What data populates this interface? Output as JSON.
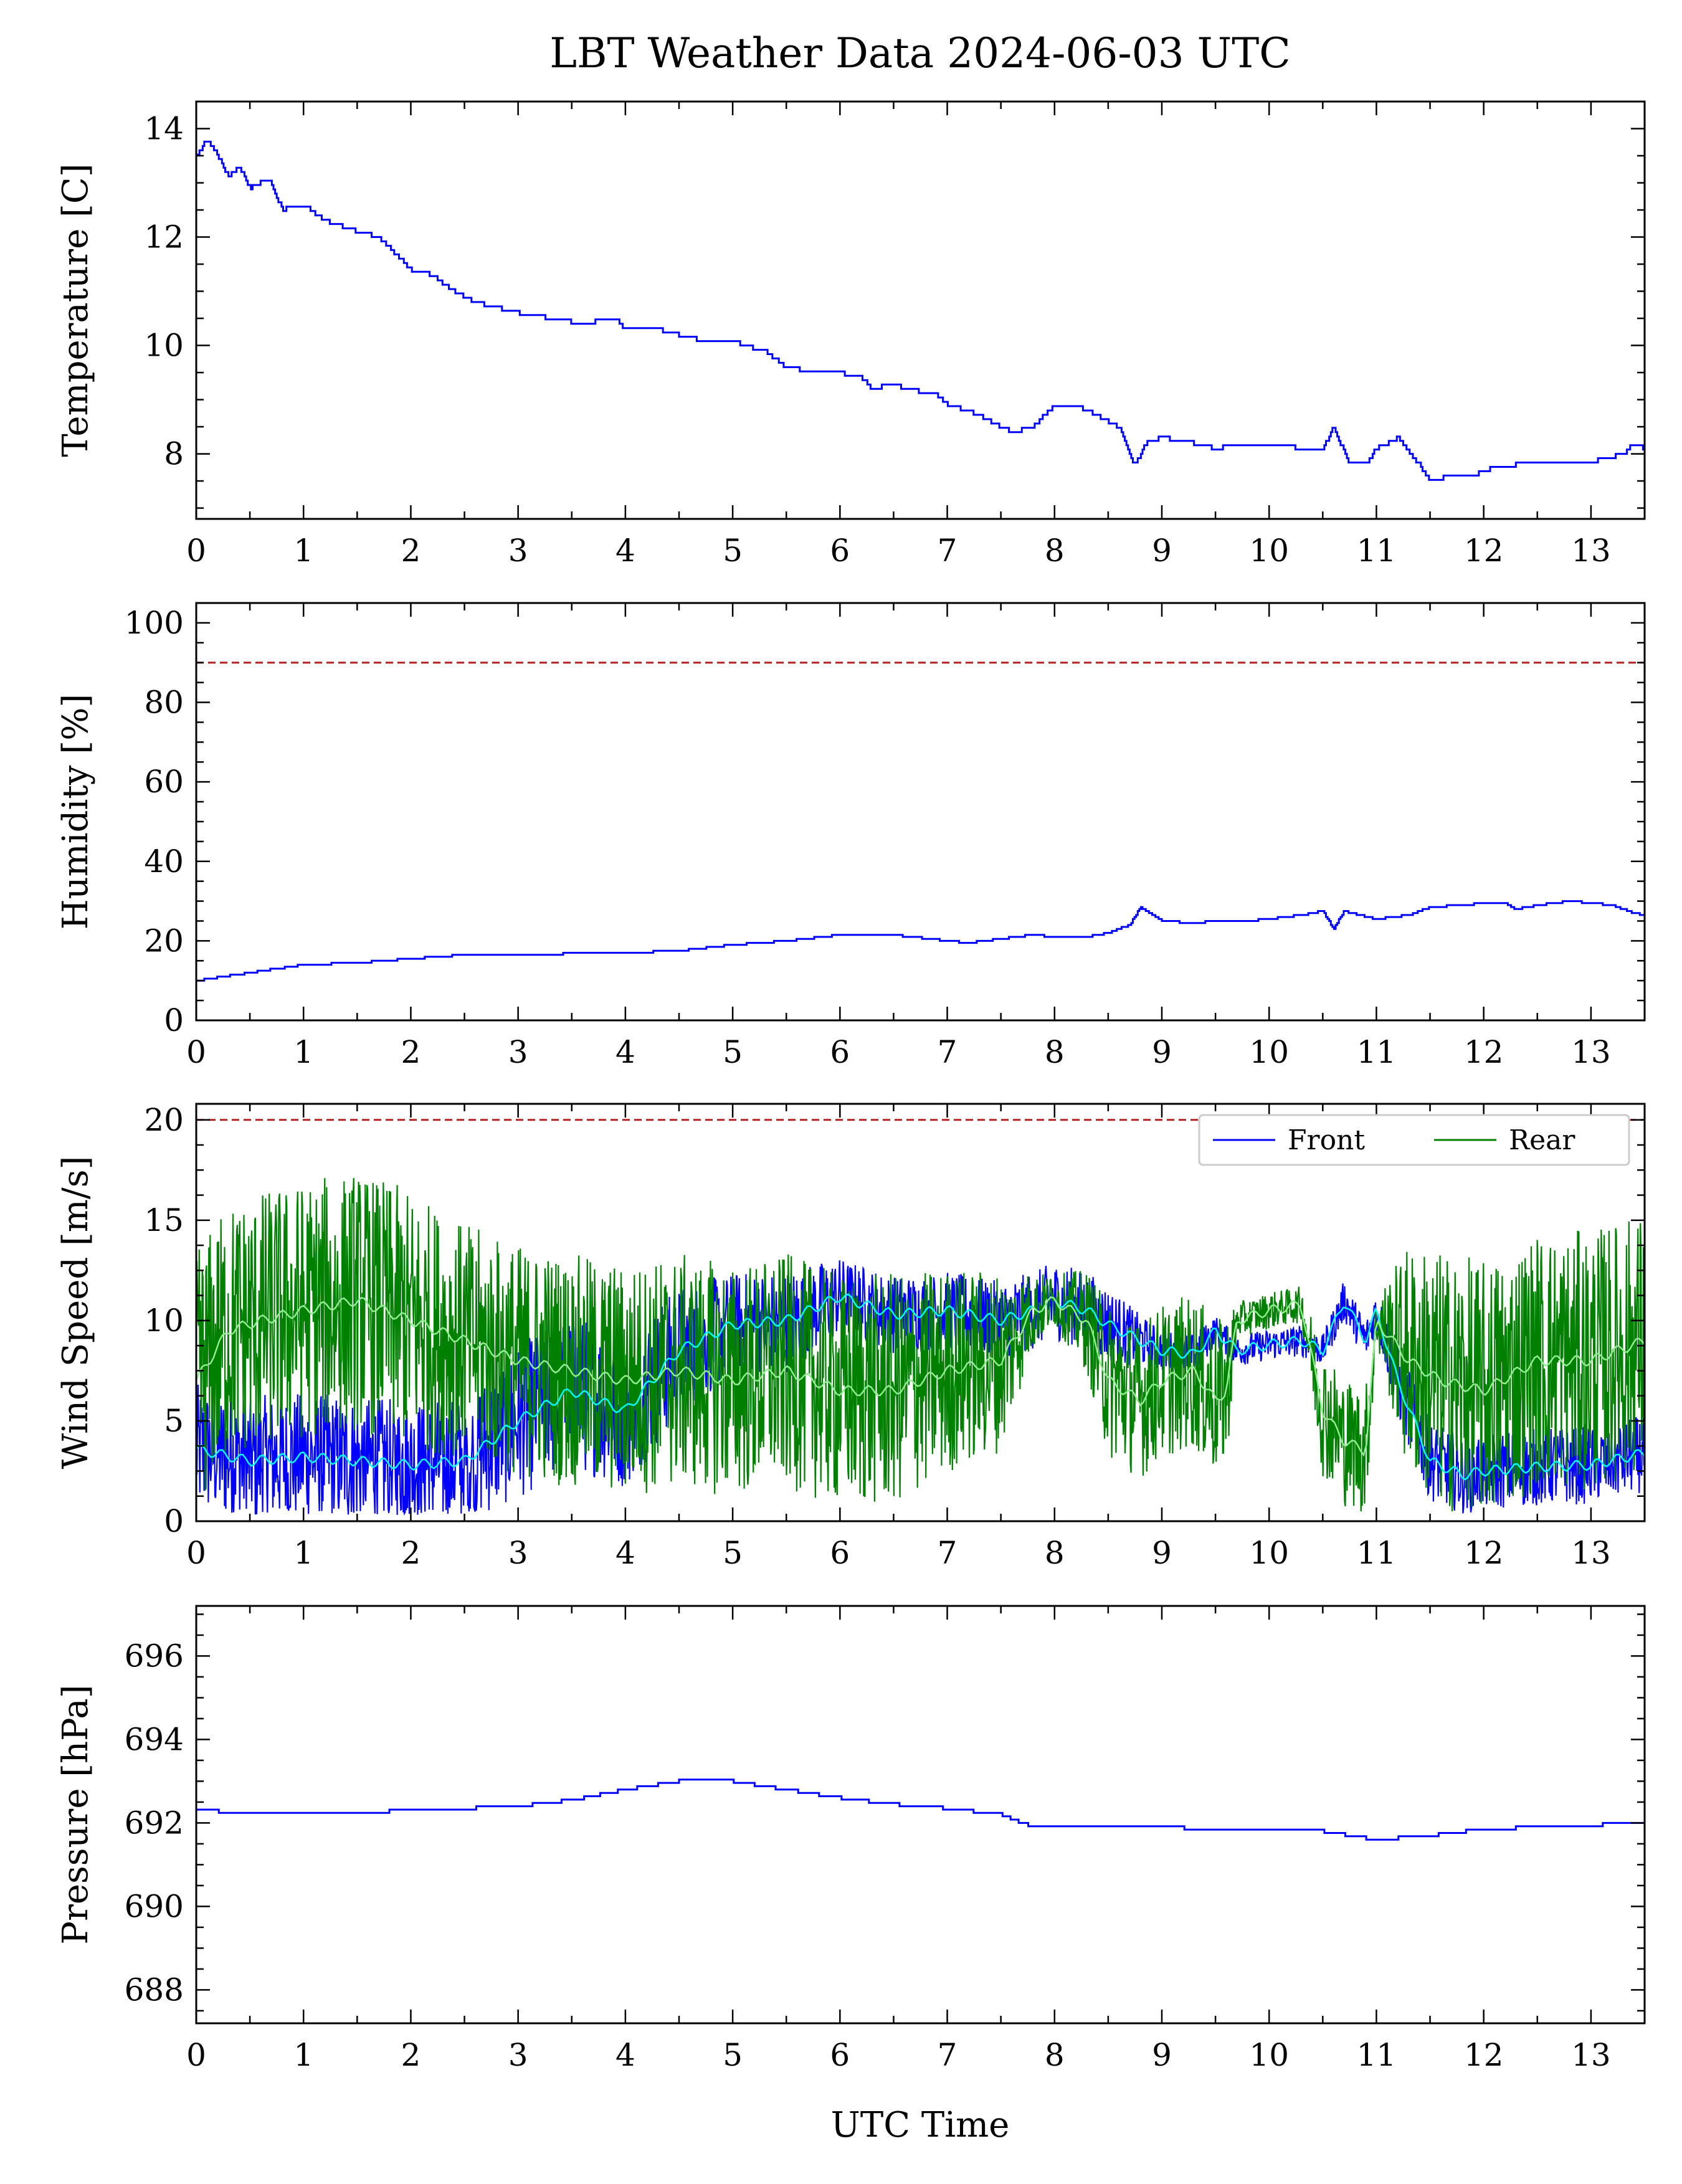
{
  "title": "LBT Weather Data 2024-06-03 UTC",
  "xlabel": "UTC Time",
  "colors": {
    "primary": "#0000ff",
    "rear": "#008000",
    "front_smooth": "#00ffff",
    "rear_smooth": "#90ee90",
    "limit": "#b22222"
  },
  "chart_data": [
    {
      "type": "line",
      "ylabel": "Temperature [C]",
      "xlim": [
        0,
        13.5
      ],
      "ylim": [
        6.8,
        14.5
      ],
      "xticks": [
        0,
        1,
        2,
        3,
        4,
        5,
        6,
        7,
        8,
        9,
        10,
        11,
        12,
        13
      ],
      "yticks": [
        8,
        10,
        12,
        14
      ],
      "series": [
        {
          "color": "#0000ff",
          "x": [
            0,
            0.1,
            0.2,
            0.3,
            0.4,
            0.5,
            0.6,
            0.7,
            0.8,
            1.0,
            1.2,
            1.5,
            1.7,
            2.0,
            2.2,
            2.4,
            2.6,
            2.8,
            3.0,
            3.3,
            3.6,
            3.9,
            4.0,
            4.3,
            4.5,
            4.7,
            5.0,
            5.1,
            5.3,
            5.5,
            5.8,
            6.0,
            6.2,
            6.3,
            6.5,
            6.6,
            6.9,
            7.0,
            7.2,
            7.4,
            7.6,
            7.8,
            8.0,
            8.2,
            8.4,
            8.6,
            8.7,
            8.75,
            8.85,
            9.0,
            9.3,
            9.5,
            9.8,
            10.0,
            10.3,
            10.5,
            10.6,
            10.75,
            10.9,
            11.0,
            11.2,
            11.4,
            11.5,
            11.7,
            11.9,
            12.0,
            12.3,
            12.6,
            12.9,
            13.1,
            13.3,
            13.4,
            13.5
          ],
          "y": [
            13.5,
            13.8,
            13.5,
            13.1,
            13.3,
            12.9,
            13.0,
            13.0,
            12.5,
            12.6,
            12.3,
            12.1,
            12.0,
            11.4,
            11.3,
            11.0,
            10.8,
            10.7,
            10.6,
            10.5,
            10.4,
            10.5,
            10.3,
            10.3,
            10.2,
            10.1,
            10.1,
            10.0,
            9.9,
            9.6,
            9.5,
            9.5,
            9.4,
            9.2,
            9.3,
            9.2,
            9.1,
            8.9,
            8.8,
            8.6,
            8.4,
            8.5,
            8.9,
            8.9,
            8.7,
            8.5,
            8.0,
            7.8,
            8.2,
            8.3,
            8.2,
            8.1,
            8.2,
            8.2,
            8.1,
            8.1,
            8.5,
            7.8,
            7.8,
            8.1,
            8.3,
            7.8,
            7.5,
            7.6,
            7.6,
            7.7,
            7.8,
            7.8,
            7.8,
            7.9,
            8.0,
            8.2,
            8.1
          ]
        }
      ]
    },
    {
      "type": "line",
      "ylabel": "Humidity [%]",
      "xlim": [
        0,
        13.5
      ],
      "ylim": [
        0,
        105
      ],
      "xticks": [
        0,
        1,
        2,
        3,
        4,
        5,
        6,
        7,
        8,
        9,
        10,
        11,
        12,
        13
      ],
      "yticks": [
        0,
        20,
        40,
        60,
        80,
        100
      ],
      "threshold": 90,
      "series": [
        {
          "color": "#0000ff",
          "x": [
            0,
            0.5,
            1.0,
            1.5,
            2.0,
            2.5,
            3.0,
            3.5,
            4.0,
            4.5,
            5.0,
            5.5,
            6.0,
            6.5,
            7.0,
            7.2,
            7.5,
            7.8,
            8.0,
            8.3,
            8.5,
            8.7,
            8.8,
            9.0,
            9.3,
            9.5,
            9.8,
            10.0,
            10.3,
            10.5,
            10.6,
            10.7,
            11.0,
            11.3,
            11.5,
            11.8,
            12.0,
            12.2,
            12.3,
            12.5,
            12.8,
            13.0,
            13.2,
            13.4,
            13.5
          ],
          "y": [
            10,
            12,
            14,
            14.5,
            15.5,
            16.5,
            16.5,
            16.8,
            17,
            17.5,
            19,
            20,
            21.5,
            21.5,
            20,
            19.5,
            20.5,
            21.5,
            21,
            21,
            22,
            24,
            28.5,
            25,
            24.5,
            25,
            25,
            25.5,
            26.5,
            27.5,
            23,
            27.5,
            25.5,
            26.5,
            28.5,
            29,
            29.5,
            29.5,
            28,
            29,
            30,
            29.5,
            29,
            27,
            26.5
          ]
        }
      ]
    },
    {
      "type": "line",
      "ylabel": "Wind Speed [m/s]",
      "xlim": [
        0,
        13.5
      ],
      "ylim": [
        0,
        20.8
      ],
      "xticks": [
        0,
        1,
        2,
        3,
        4,
        5,
        6,
        7,
        8,
        9,
        10,
        11,
        12,
        13
      ],
      "yticks": [
        0,
        5,
        10,
        15,
        20
      ],
      "threshold": 20,
      "legend": {
        "position": "top-right",
        "columns": 2
      },
      "series": [
        {
          "name": "Front",
          "color": "#0000ff",
          "x": [
            0,
            0.5,
            1.0,
            1.5,
            2.0,
            2.5,
            3.0,
            3.5,
            4.0,
            4.5,
            5.0,
            5.5,
            6.0,
            6.5,
            7.0,
            7.5,
            7.8,
            8.0,
            8.3,
            8.5,
            8.8,
            9.0,
            9.3,
            9.5,
            9.7,
            10.0,
            10.3,
            10.5,
            10.7,
            10.9,
            11.0,
            11.2,
            11.5,
            11.8,
            12.0,
            12.5,
            13.0,
            13.5
          ],
          "y": [
            3.6,
            3.0,
            3.2,
            3.0,
            2.8,
            3.0,
            5.0,
            6.5,
            5.5,
            8.5,
            9.8,
            10.0,
            11.2,
            10.3,
            10.5,
            10.0,
            10.5,
            11.0,
            10.5,
            9.8,
            9.0,
            8.5,
            8.3,
            9.5,
            8.5,
            8.8,
            9.0,
            8.5,
            11.0,
            9.0,
            10.5,
            7.0,
            3.0,
            2.3,
            2.5,
            2.7,
            2.8,
            3.4
          ],
          "spread": [
            2.5,
            2.5,
            2.5,
            2.5,
            2.5,
            2.5,
            3.0,
            3.0,
            3.0,
            2.5,
            2.0,
            2.0,
            1.5,
            1.5,
            1.5,
            1.5,
            1.5,
            1.5,
            1.5,
            1.5,
            1.0,
            0.8,
            0.8,
            0.6,
            0.6,
            0.6,
            0.6,
            0.6,
            0.8,
            0.8,
            0.8,
            1.5,
            1.5,
            1.5,
            1.5,
            1.5,
            1.5,
            1.5
          ]
        },
        {
          "name": "Rear",
          "color": "#008000",
          "x": [
            0,
            0.3,
            0.6,
            1.0,
            1.5,
            2.0,
            2.5,
            3.0,
            3.5,
            4.0,
            4.5,
            5.0,
            5.5,
            6.0,
            6.5,
            7.0,
            7.5,
            7.8,
            8.0,
            8.3,
            8.5,
            8.8,
            9.0,
            9.3,
            9.5,
            9.6,
            9.7,
            10.0,
            10.3,
            10.5,
            10.7,
            10.9,
            11.0,
            11.3,
            11.6,
            12.0,
            12.5,
            13.0,
            13.5
          ],
          "y": [
            7.0,
            9.5,
            10.0,
            10.5,
            11.0,
            10.0,
            9.0,
            8.0,
            7.5,
            7.0,
            7.5,
            7.0,
            7.5,
            6.5,
            6.5,
            7.5,
            8.0,
            10.5,
            11.0,
            10.0,
            7.0,
            6.0,
            7.0,
            7.5,
            6.0,
            6.5,
            10.0,
            10.5,
            10.8,
            5.5,
            4.0,
            3.5,
            10.0,
            8.0,
            7.0,
            6.5,
            8.0,
            8.0,
            9.0
          ],
          "spread": [
            5,
            5,
            5,
            5,
            5,
            5,
            4.5,
            4.5,
            4.5,
            4.5,
            4.5,
            4.5,
            4.5,
            4.5,
            4.5,
            4.0,
            3.5,
            1.5,
            1.0,
            2.0,
            3.0,
            3.0,
            3.0,
            3.0,
            3.0,
            3.0,
            0.7,
            0.7,
            0.7,
            2.5,
            2.5,
            2.5,
            1.0,
            4.5,
            5.0,
            5.0,
            5.0,
            5.0,
            5.0
          ]
        }
      ]
    },
    {
      "type": "line",
      "ylabel": "Pressure [hPa]",
      "xlim": [
        0,
        13.5
      ],
      "ylim": [
        687.2,
        697.2
      ],
      "xticks": [
        0,
        1,
        2,
        3,
        4,
        5,
        6,
        7,
        8,
        9,
        10,
        11,
        12,
        13
      ],
      "yticks": [
        688,
        690,
        692,
        694,
        696
      ],
      "series": [
        {
          "color": "#0000ff",
          "x": [
            0,
            0.5,
            1.0,
            1.5,
            2.0,
            2.5,
            3.0,
            3.5,
            4.0,
            4.5,
            5.0,
            5.5,
            6.0,
            6.5,
            7.0,
            7.5,
            7.8,
            8.0,
            8.5,
            9.0,
            9.5,
            10.0,
            10.5,
            11.0,
            11.5,
            12.0,
            12.5,
            13.0,
            13.5
          ],
          "y": [
            692.3,
            692.25,
            692.25,
            692.25,
            692.3,
            692.35,
            692.4,
            692.55,
            692.8,
            693.0,
            693.0,
            692.8,
            692.6,
            692.45,
            692.35,
            692.2,
            691.9,
            691.9,
            691.95,
            691.9,
            691.85,
            691.8,
            691.8,
            691.6,
            691.7,
            691.85,
            691.9,
            691.95,
            692.0
          ]
        }
      ]
    }
  ]
}
